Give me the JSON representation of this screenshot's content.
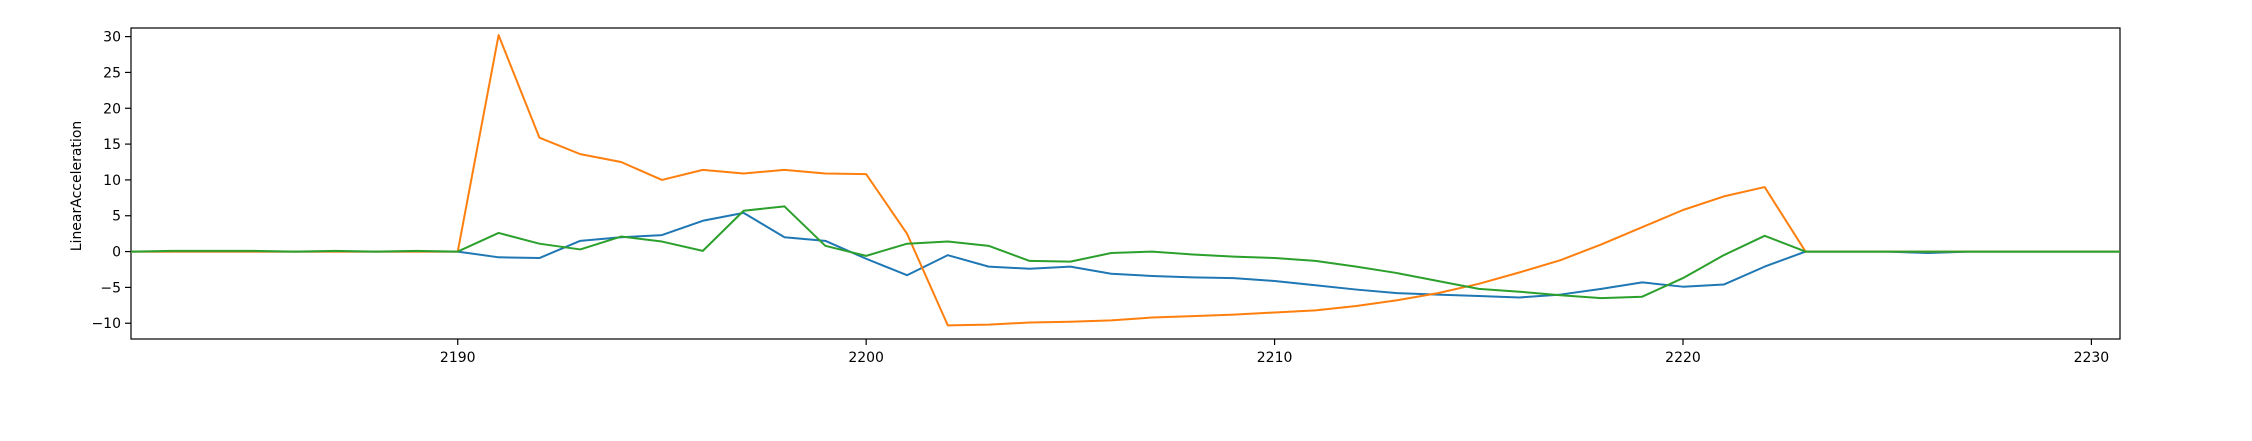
{
  "chart_data": {
    "type": "line",
    "title": "",
    "xlabel": "",
    "ylabel": "LinearAcceleration",
    "xlim": [
      2182,
      2230.7
    ],
    "ylim": [
      -12.2,
      31.2
    ],
    "xticks": [
      2190,
      2200,
      2210,
      2220,
      2230
    ],
    "yticks": [
      -10,
      -5,
      0,
      5,
      10,
      15,
      20,
      25,
      30
    ],
    "grid": false,
    "legend": "none",
    "colors": [
      "#1f77b4",
      "#ff7f0e",
      "#2ca02c"
    ],
    "x": [
      2182,
      2183,
      2184,
      2185,
      2186,
      2187,
      2188,
      2189,
      2190,
      2191,
      2192,
      2193,
      2194,
      2195,
      2196,
      2197,
      2198,
      2199,
      2200,
      2201,
      2202,
      2203,
      2204,
      2205,
      2206,
      2207,
      2208,
      2209,
      2210,
      2211,
      2212,
      2213,
      2214,
      2215,
      2216,
      2217,
      2218,
      2219,
      2220,
      2221,
      2222,
      2223,
      2224,
      2225,
      2226,
      2227,
      2228,
      2229,
      2230,
      2230.7
    ],
    "series": [
      {
        "color": "#1f77b4",
        "values": [
          0,
          0,
          0,
          0,
          0,
          0,
          0,
          0,
          0,
          -0.8,
          -0.9,
          1.5,
          2.0,
          2.3,
          4.3,
          5.4,
          2.0,
          1.5,
          -1.0,
          -3.3,
          -0.5,
          -2.1,
          -2.4,
          -2.1,
          -3.1,
          -3.4,
          -3.6,
          -3.7,
          -4.1,
          -4.7,
          -5.3,
          -5.8,
          -6.0,
          -6.2,
          -6.4,
          -6.0,
          -5.2,
          -4.3,
          -4.9,
          -4.6,
          -2.1,
          0,
          0,
          0,
          -0.2,
          0,
          0,
          0,
          0,
          0
        ]
      },
      {
        "color": "#ff7f0e",
        "values": [
          0,
          0,
          0,
          0,
          0,
          0,
          0,
          0,
          0,
          30.2,
          15.9,
          13.6,
          12.5,
          10.0,
          11.4,
          10.9,
          11.4,
          10.9,
          10.8,
          2.5,
          -10.3,
          -10.2,
          -9.9,
          -9.8,
          -9.6,
          -9.2,
          -9.0,
          -8.8,
          -8.5,
          -8.2,
          -7.6,
          -6.8,
          -5.8,
          -4.5,
          -2.9,
          -1.2,
          1.0,
          3.4,
          5.8,
          7.7,
          9.0,
          0,
          0,
          0,
          0,
          0,
          0,
          0,
          0,
          0
        ]
      },
      {
        "color": "#2ca02c",
        "values": [
          0,
          0.1,
          0.1,
          0.1,
          0,
          0.1,
          0,
          0.1,
          0,
          2.6,
          1.1,
          0.3,
          2.1,
          1.4,
          0.1,
          5.7,
          6.3,
          0.8,
          -0.6,
          1.1,
          1.4,
          0.8,
          -1.3,
          -1.4,
          -0.2,
          0,
          -0.4,
          -0.7,
          -0.9,
          -1.3,
          -2.1,
          -3.0,
          -4.1,
          -5.2,
          -5.6,
          -6.1,
          -6.5,
          -6.3,
          -3.7,
          -0.5,
          2.2,
          0,
          0,
          0,
          0,
          0,
          0,
          0,
          0,
          0
        ]
      }
    ]
  }
}
